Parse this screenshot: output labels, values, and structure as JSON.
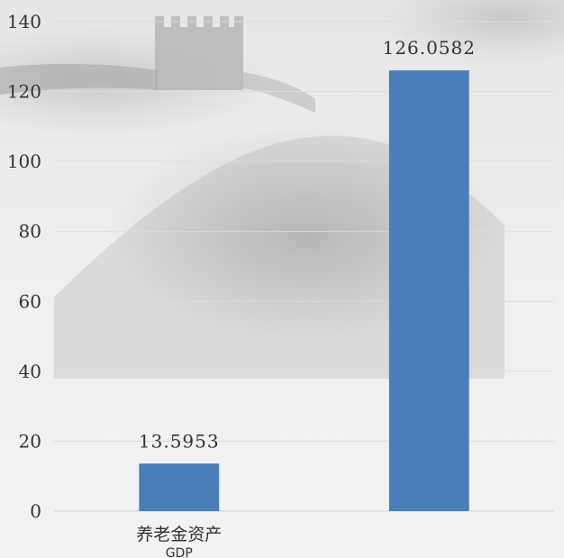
{
  "chart_data": {
    "type": "bar",
    "categories": [
      "养老金资产",
      "GDP"
    ],
    "values": [
      13.5953,
      126.0582
    ],
    "value_labels": [
      "13.5953",
      "126.0582"
    ],
    "ylim": [
      0,
      140
    ],
    "yticks": [
      0,
      20,
      40,
      60,
      80,
      100,
      120,
      140
    ],
    "grid": true,
    "legend": "none",
    "colors": {
      "bar": "#4a7ebb",
      "grid": "#dcdcdc",
      "text": "#333333"
    }
  }
}
